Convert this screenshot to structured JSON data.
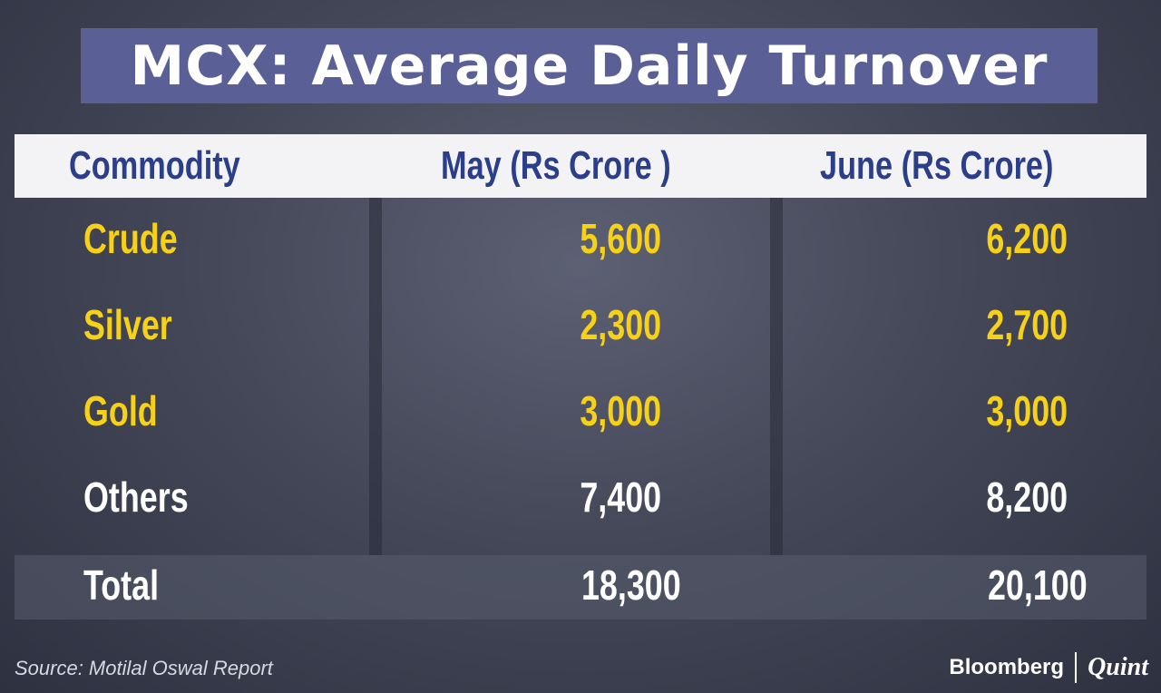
{
  "title": "MCX: Average Daily Turnover",
  "source": "Source: Motilal Oswal Report",
  "branding": {
    "primary": "Bloomberg",
    "secondary": "Quint"
  },
  "colors": {
    "title_bg": "#5a5f96",
    "header_text": "#2b3e8a",
    "commodity_highlight": "#f7d117",
    "text": "#ffffff"
  },
  "chart_data": {
    "type": "table",
    "title": "MCX: Average Daily Turnover",
    "columns": [
      "Commodity",
      "May (Rs Crore )",
      "June (Rs Crore)"
    ],
    "rows": [
      {
        "commodity": "Crude",
        "may": "5,600",
        "june": "6,200",
        "highlight": true
      },
      {
        "commodity": "Silver",
        "may": "2,300",
        "june": "2,700",
        "highlight": true
      },
      {
        "commodity": "Gold",
        "may": "3,000",
        "june": "3,000",
        "highlight": true
      },
      {
        "commodity": "Others",
        "may": "7,400",
        "june": "8,200",
        "highlight": false
      }
    ],
    "total": {
      "commodity": "Total",
      "may": "18,300",
      "june": "20,100"
    }
  }
}
